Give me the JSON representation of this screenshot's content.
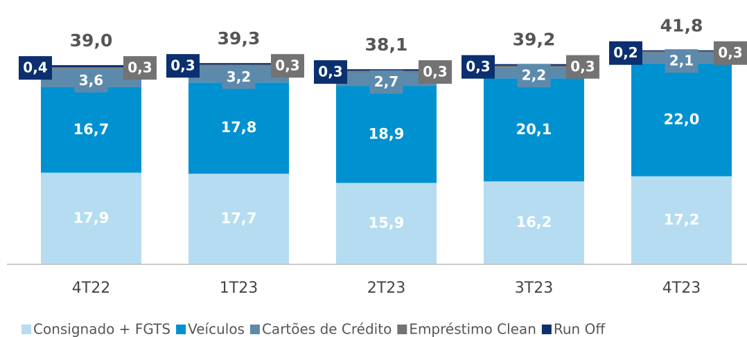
{
  "chart_data": {
    "type": "stacked_bar",
    "categories": [
      "4T22",
      "1T23",
      "2T23",
      "3T23",
      "4T23"
    ],
    "series": [
      {
        "name": "Consignado + FGTS",
        "color": "#b5dcf1",
        "values": [
          17.9,
          17.7,
          15.9,
          16.2,
          17.2
        ],
        "value_labels": [
          "17,9",
          "17,7",
          "15,9",
          "16,2",
          "17,2"
        ]
      },
      {
        "name": "Veículos",
        "color": "#0091d1",
        "values": [
          16.7,
          17.8,
          18.9,
          20.1,
          22.0
        ],
        "value_labels": [
          "16,7",
          "17,8",
          "18,9",
          "20,1",
          "22,0"
        ]
      },
      {
        "name": "Cartões de Crédito",
        "color": "#5d8aab",
        "values": [
          3.6,
          3.2,
          2.7,
          2.2,
          2.1
        ],
        "value_labels": [
          "3,6",
          "3,2",
          "2,7",
          "2,2",
          "2,1"
        ]
      },
      {
        "name": "Empréstimo Clean",
        "color": "#737373",
        "values": [
          0.3,
          0.3,
          0.3,
          0.3,
          0.3
        ],
        "value_labels": [
          "0,3",
          "0,3",
          "0,3",
          "0,3",
          "0,3"
        ]
      },
      {
        "name": "Run Off",
        "color": "#0b2f6f",
        "values": [
          0.4,
          0.3,
          0.3,
          0.3,
          0.2
        ],
        "value_labels": [
          "0,4",
          "0,3",
          "0,3",
          "0,3",
          "0,2"
        ]
      }
    ],
    "totals": [
      39.0,
      39.3,
      38.1,
      39.2,
      41.8
    ],
    "total_labels": [
      "39,0",
      "39,3",
      "38,1",
      "39,2",
      "41,8"
    ],
    "ylim": [
      0,
      50
    ]
  }
}
